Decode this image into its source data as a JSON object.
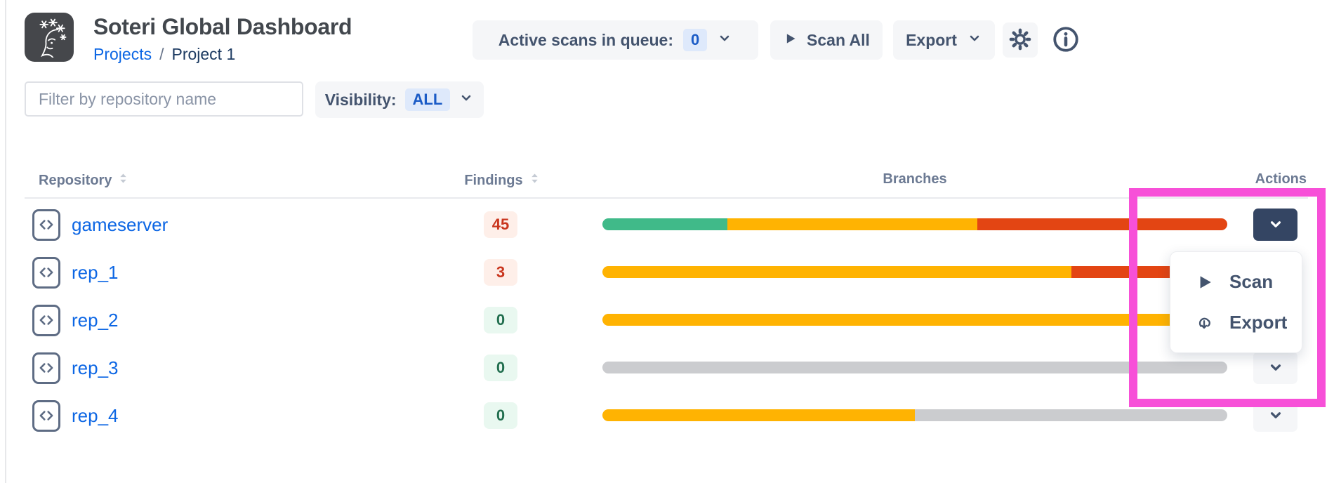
{
  "header": {
    "title": "Soteri Global Dashboard",
    "breadcrumb": {
      "parent": "Projects",
      "separator": "/",
      "current": "Project 1"
    }
  },
  "toolbar": {
    "queue_label": "Active scans in queue:",
    "queue_count": "0",
    "scan_all_label": "Scan All",
    "export_label": "Export",
    "icons": [
      "play-icon",
      "chevron-down-icon",
      "gear-icon",
      "info-icon"
    ]
  },
  "filters": {
    "repo_filter_placeholder": "Filter by repository name",
    "visibility_label": "Visibility:",
    "visibility_value": "ALL"
  },
  "table": {
    "headers": {
      "repository": "Repository",
      "findings": "Findings",
      "branches": "Branches",
      "actions": "Actions"
    },
    "rows": [
      {
        "name": "gameserver",
        "findings": "45",
        "findings_status": "alert",
        "bar": [
          {
            "color": "green",
            "pct": 20
          },
          {
            "color": "yellow",
            "pct": 40
          },
          {
            "color": "red",
            "pct": 40
          }
        ],
        "action_button": "open"
      },
      {
        "name": "rep_1",
        "findings": "3",
        "findings_status": "alert",
        "bar": [
          {
            "color": "yellow",
            "pct": 75
          },
          {
            "color": "red",
            "pct": 25
          }
        ],
        "action_button": "default"
      },
      {
        "name": "rep_2",
        "findings": "0",
        "findings_status": "ok",
        "bar": [
          {
            "color": "yellow",
            "pct": 100
          }
        ],
        "action_button": "default"
      },
      {
        "name": "rep_3",
        "findings": "0",
        "findings_status": "ok",
        "bar": [
          {
            "color": "gray",
            "pct": 100
          }
        ],
        "action_button": "default"
      },
      {
        "name": "rep_4",
        "findings": "0",
        "findings_status": "ok",
        "bar": [
          {
            "color": "yellow",
            "pct": 50
          },
          {
            "color": "gray",
            "pct": 50
          }
        ],
        "action_button": "default"
      }
    ]
  },
  "action_menu": {
    "items": [
      {
        "icon": "play-icon",
        "label": "Scan"
      },
      {
        "icon": "cloud-download-icon",
        "label": "Export"
      }
    ]
  },
  "colors": {
    "bar_green": "#40BA89",
    "bar_yellow": "#FFB302",
    "bar_red": "#E34513",
    "bar_gray": "#CBCCCF",
    "badge_alert_bg": "#FEEFE9",
    "badge_alert_text": "#C9351D",
    "badge_ok_bg": "#E9F8F0",
    "badge_ok_text": "#216E4E",
    "accent_blue": "#0C66E4",
    "annotation": "#F750D8"
  }
}
